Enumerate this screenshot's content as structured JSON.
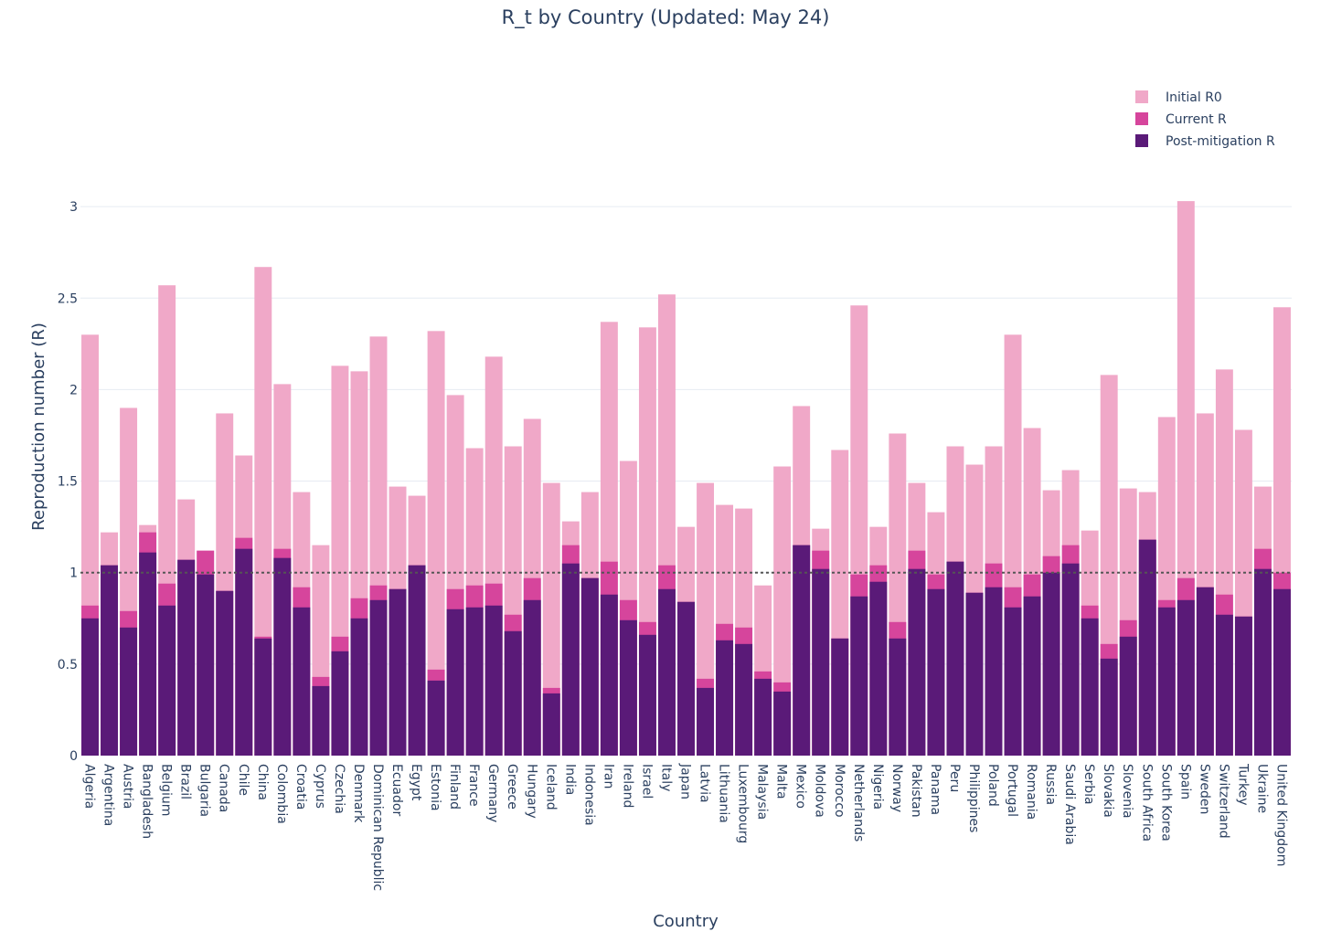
{
  "chart_data": {
    "type": "bar",
    "barmode": "overlay",
    "title": "R_t by Country (Updated: May 24)",
    "xlabel": "Country",
    "ylabel": "Reproduction number (R)",
    "ylim": [
      0,
      3.4
    ],
    "yticks": [
      0,
      0.5,
      1,
      1.5,
      2,
      2.5,
      3
    ],
    "ytick_labels": [
      "0",
      "0.5",
      "1",
      "1.5",
      "2",
      "2.5",
      "3"
    ],
    "grid": true,
    "legend_position": "top-right",
    "reference_line": {
      "value": 1,
      "style": "dotted"
    },
    "categories": [
      "Algeria",
      "Argentina",
      "Austria",
      "Bangladesh",
      "Belgium",
      "Brazil",
      "Bulgaria",
      "Canada",
      "Chile",
      "China",
      "Colombia",
      "Croatia",
      "Cyprus",
      "Czechia",
      "Denmark",
      "Dominican Republic",
      "Ecuador",
      "Egypt",
      "Estonia",
      "Finland",
      "France",
      "Germany",
      "Greece",
      "Hungary",
      "Iceland",
      "India",
      "Indonesia",
      "Iran",
      "Ireland",
      "Israel",
      "Italy",
      "Japan",
      "Latvia",
      "Lithuania",
      "Luxembourg",
      "Malaysia",
      "Malta",
      "Mexico",
      "Moldova",
      "Morocco",
      "Netherlands",
      "Nigeria",
      "Norway",
      "Pakistan",
      "Panama",
      "Peru",
      "Philippines",
      "Poland",
      "Portugal",
      "Romania",
      "Russia",
      "Saudi Arabia",
      "Serbia",
      "Slovakia",
      "Slovenia",
      "South Africa",
      "South Korea",
      "Spain",
      "Sweden",
      "Switzerland",
      "Turkey",
      "Ukraine",
      "United Kingdom"
    ],
    "series": [
      {
        "name": "Initial R0",
        "color": "#f0a8c8",
        "values": [
          2.3,
          1.22,
          1.9,
          1.26,
          2.57,
          1.4,
          1.12,
          1.87,
          1.64,
          2.67,
          2.03,
          1.44,
          1.15,
          2.13,
          2.1,
          2.29,
          1.47,
          1.42,
          2.32,
          1.97,
          1.68,
          2.18,
          1.69,
          1.84,
          1.49,
          1.28,
          1.44,
          2.37,
          1.61,
          2.34,
          2.52,
          1.25,
          1.49,
          1.37,
          1.35,
          0.93,
          1.58,
          1.91,
          1.24,
          1.67,
          2.46,
          1.25,
          1.76,
          1.49,
          1.33,
          1.69,
          1.59,
          1.69,
          2.3,
          1.79,
          1.45,
          1.56,
          1.23,
          2.08,
          1.46,
          1.44,
          1.85,
          3.03,
          1.87,
          2.11,
          1.78,
          1.47,
          2.45
        ]
      },
      {
        "name": "Current R",
        "color": "#d6459c",
        "values": [
          0.82,
          1.04,
          0.79,
          1.22,
          0.94,
          1.07,
          1.12,
          0.9,
          1.19,
          0.65,
          1.13,
          0.92,
          0.43,
          0.65,
          0.86,
          0.93,
          0.91,
          1.04,
          0.47,
          0.91,
          0.93,
          0.94,
          0.77,
          0.97,
          0.37,
          1.15,
          0.97,
          1.06,
          0.85,
          0.73,
          1.04,
          0.84,
          0.42,
          0.72,
          0.7,
          0.46,
          0.4,
          1.15,
          1.12,
          0.64,
          0.99,
          1.04,
          0.73,
          1.12,
          0.99,
          1.06,
          0.89,
          1.05,
          0.92,
          0.99,
          1.09,
          1.15,
          0.82,
          0.61,
          0.74,
          1.18,
          0.85,
          0.97,
          0.92,
          0.88,
          0.76,
          1.13,
          1.0
        ]
      },
      {
        "name": "Post-mitigation R",
        "color": "#5a1a78",
        "values": [
          0.75,
          1.04,
          0.7,
          1.11,
          0.82,
          1.07,
          0.99,
          0.9,
          1.13,
          0.64,
          1.08,
          0.81,
          0.38,
          0.57,
          0.75,
          0.85,
          0.91,
          1.04,
          0.41,
          0.8,
          0.81,
          0.82,
          0.68,
          0.85,
          0.34,
          1.05,
          0.97,
          0.88,
          0.74,
          0.66,
          0.91,
          0.84,
          0.37,
          0.63,
          0.61,
          0.42,
          0.35,
          1.15,
          1.02,
          0.64,
          0.87,
          0.95,
          0.64,
          1.02,
          0.91,
          1.06,
          0.89,
          0.92,
          0.81,
          0.87,
          1.0,
          1.05,
          0.75,
          0.53,
          0.65,
          1.18,
          0.81,
          0.85,
          0.92,
          0.77,
          0.76,
          1.02,
          0.91
        ]
      }
    ]
  }
}
